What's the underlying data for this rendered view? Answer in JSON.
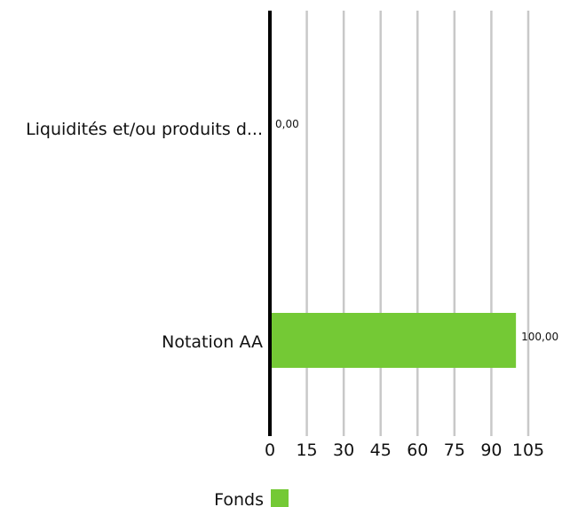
{
  "chart_data": {
    "type": "bar",
    "orientation": "horizontal",
    "categories": [
      "Liquidités et/ou produits d...",
      "Notation AA"
    ],
    "series": [
      {
        "name": "Fonds",
        "values": [
          0,
          100
        ],
        "labels": [
          "0,00",
          "100,00"
        ],
        "color": "#74c935"
      }
    ],
    "xlim": [
      0,
      105
    ],
    "xticks": [
      0,
      15,
      30,
      45,
      60,
      75,
      90,
      105
    ],
    "xtick_labels": [
      "0",
      "15",
      "30",
      "45",
      "60",
      "75",
      "90",
      "105"
    ],
    "grid": "vertical",
    "legend": "bottom-center",
    "axis_color": "#000000",
    "grid_color": "#c8c8c8"
  }
}
